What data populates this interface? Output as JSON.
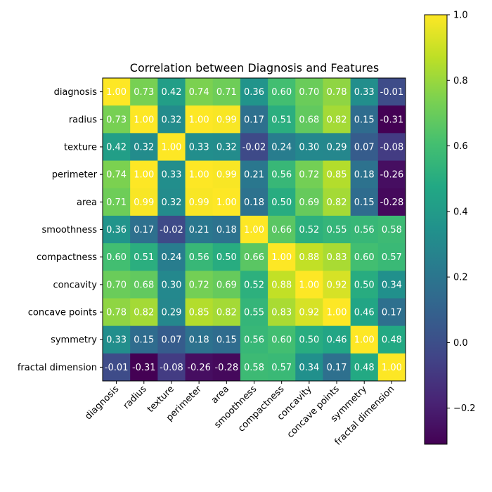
{
  "chart_data": {
    "type": "heatmap",
    "title": "Correlation between Diagnosis and Features",
    "labels": [
      "diagnosis",
      "radius",
      "texture",
      "perimeter",
      "area",
      "smoothness",
      "compactness",
      "concavity",
      "concave points",
      "symmetry",
      "fractal dimension"
    ],
    "values": [
      [
        1.0,
        0.73,
        0.42,
        0.74,
        0.71,
        0.36,
        0.6,
        0.7,
        0.78,
        0.33,
        -0.01
      ],
      [
        0.73,
        1.0,
        0.32,
        1.0,
        0.99,
        0.17,
        0.51,
        0.68,
        0.82,
        0.15,
        -0.31
      ],
      [
        0.42,
        0.32,
        1.0,
        0.33,
        0.32,
        -0.02,
        0.24,
        0.3,
        0.29,
        0.07,
        -0.08
      ],
      [
        0.74,
        1.0,
        0.33,
        1.0,
        0.99,
        0.21,
        0.56,
        0.72,
        0.85,
        0.18,
        -0.26
      ],
      [
        0.71,
        0.99,
        0.32,
        0.99,
        1.0,
        0.18,
        0.5,
        0.69,
        0.82,
        0.15,
        -0.28
      ],
      [
        0.36,
        0.17,
        -0.02,
        0.21,
        0.18,
        1.0,
        0.66,
        0.52,
        0.55,
        0.56,
        0.58
      ],
      [
        0.6,
        0.51,
        0.24,
        0.56,
        0.5,
        0.66,
        1.0,
        0.88,
        0.83,
        0.6,
        0.57
      ],
      [
        0.7,
        0.68,
        0.3,
        0.72,
        0.69,
        0.52,
        0.88,
        1.0,
        0.92,
        0.5,
        0.34
      ],
      [
        0.78,
        0.82,
        0.29,
        0.85,
        0.82,
        0.55,
        0.83,
        0.92,
        1.0,
        0.46,
        0.17
      ],
      [
        0.33,
        0.15,
        0.07,
        0.18,
        0.15,
        0.56,
        0.6,
        0.5,
        0.46,
        1.0,
        0.48
      ],
      [
        -0.01,
        -0.31,
        -0.08,
        -0.26,
        -0.28,
        0.58,
        0.57,
        0.34,
        0.17,
        0.48,
        1.0
      ]
    ],
    "colormap": "viridis",
    "colorbar": {
      "range": [
        -0.31,
        1.0
      ],
      "ticks": [
        "1.0",
        "0.8",
        "0.6",
        "0.4",
        "0.2",
        "0.0",
        "−0.2"
      ]
    },
    "grid": false
  }
}
